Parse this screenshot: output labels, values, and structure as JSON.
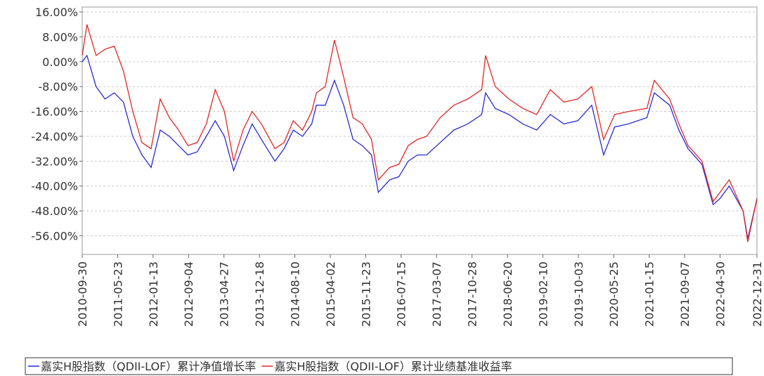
{
  "chart_data": {
    "type": "line",
    "x": [
      "2010-09-30",
      "2010-10-31",
      "2010-12-31",
      "2011-02-28",
      "2011-04-30",
      "2011-06-30",
      "2011-08-31",
      "2011-10-31",
      "2011-12-31",
      "2012-02-29",
      "2012-04-30",
      "2012-06-30",
      "2012-08-31",
      "2012-10-31",
      "2012-12-31",
      "2013-02-28",
      "2013-04-30",
      "2013-06-30",
      "2013-08-31",
      "2013-10-31",
      "2013-12-31",
      "2014-03-31",
      "2014-05-31",
      "2014-07-31",
      "2014-09-30",
      "2014-11-30",
      "2014-12-31",
      "2015-02-28",
      "2015-04-30",
      "2015-06-30",
      "2015-08-31",
      "2015-10-31",
      "2015-12-31",
      "2016-02-15",
      "2016-04-30",
      "2016-06-30",
      "2016-08-31",
      "2016-10-31",
      "2016-12-31",
      "2017-03-31",
      "2017-06-30",
      "2017-09-30",
      "2017-12-31",
      "2018-01-26",
      "2018-03-31",
      "2018-06-30",
      "2018-09-30",
      "2018-12-31",
      "2019-03-31",
      "2019-06-30",
      "2019-09-30",
      "2019-12-31",
      "2020-03-19",
      "2020-05-31",
      "2020-08-31",
      "2020-12-31",
      "2021-02-18",
      "2021-05-31",
      "2021-07-31",
      "2021-09-30",
      "2021-12-31",
      "2022-03-15",
      "2022-04-30",
      "2022-06-30",
      "2022-09-30",
      "2022-10-31",
      "2022-12-31"
    ],
    "series": [
      {
        "name": "嘉实H股指数（QDII-LOF）累计净值增长率",
        "color": "#2a2ad6",
        "values": [
          0,
          2,
          -8,
          -12,
          -10,
          -13,
          -24,
          -30,
          -34,
          -22,
          -24,
          -27,
          -30,
          -29,
          -24,
          -19,
          -24,
          -35,
          -27,
          -20,
          -25,
          -32,
          -28,
          -22,
          -24,
          -20,
          -14,
          -14,
          -6,
          -14,
          -25,
          -27,
          -30,
          -42,
          -38,
          -37,
          -32,
          -30,
          -30,
          -26,
          -22,
          -20,
          -17,
          -10,
          -15,
          -17,
          -20,
          -22,
          -17,
          -20,
          -19,
          -14,
          -30,
          -21,
          -20,
          -18,
          -10,
          -14,
          -22,
          -28,
          -33,
          -46,
          -44,
          -40,
          -48,
          -57,
          -44
        ]
      },
      {
        "name": "嘉实H股指数（QDII-LOF）累计业绩基准收益率",
        "color": "#e32626",
        "values": [
          2,
          12,
          2,
          4,
          5,
          -3,
          -16,
          -26,
          -28,
          -12,
          -18,
          -22,
          -27,
          -26,
          -20,
          -9,
          -16,
          -32,
          -22,
          -16,
          -20,
          -28,
          -26,
          -19,
          -22,
          -16,
          -10,
          -8,
          7,
          -5,
          -18,
          -20,
          -25,
          -38,
          -34,
          -33,
          -27,
          -25,
          -24,
          -18,
          -14,
          -12,
          -9,
          2,
          -8,
          -12,
          -15,
          -17,
          -9,
          -13,
          -12,
          -8,
          -25,
          -17,
          -16,
          -15,
          -6,
          -12,
          -20,
          -27,
          -32,
          -45,
          -42,
          -38,
          -48,
          -58,
          -44
        ]
      }
    ],
    "xlim": [
      "2010-09-30",
      "2022-12-31"
    ],
    "xticks": [
      "2010-09-30",
      "2011-05-23",
      "2012-01-13",
      "2012-09-04",
      "2013-04-27",
      "2013-12-18",
      "2014-08-10",
      "2015-04-02",
      "2015-11-23",
      "2016-07-15",
      "2017-03-07",
      "2017-10-28",
      "2018-06-20",
      "2019-02-10",
      "2019-10-03",
      "2020-05-25",
      "2021-01-15",
      "2021-09-07",
      "2022-04-30",
      "2022-12-31"
    ],
    "ylim": [
      -62,
      17.6
    ],
    "yticks": [
      {
        "value": 16,
        "label": "16.00%"
      },
      {
        "value": 8,
        "label": "8.00%"
      },
      {
        "value": 0,
        "label": "0.00%"
      },
      {
        "value": -8,
        "label": "-8.00%"
      },
      {
        "value": -16,
        "label": "-16.00%"
      },
      {
        "value": -24,
        "label": "-24.00%"
      },
      {
        "value": -32,
        "label": "-32.00%"
      },
      {
        "value": -40,
        "label": "-40.00%"
      },
      {
        "value": -48,
        "label": "-48.00%"
      },
      {
        "value": -56,
        "label": "-56.00%"
      }
    ],
    "grid": true
  }
}
